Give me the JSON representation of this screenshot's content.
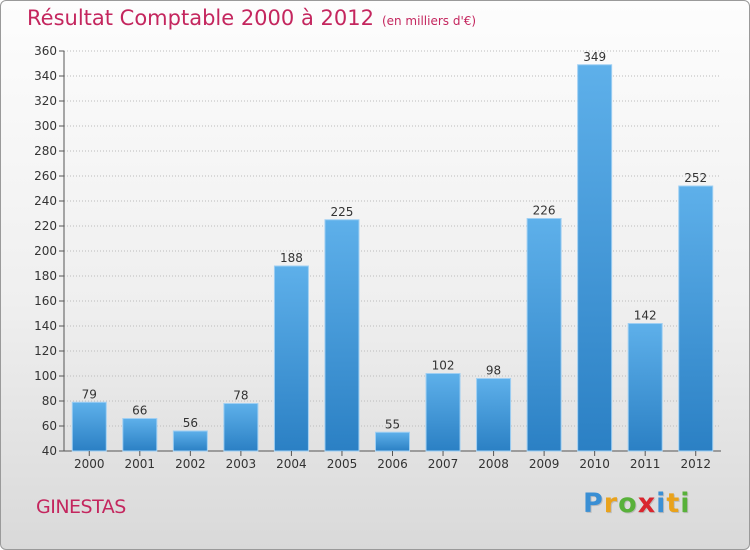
{
  "page": {
    "title": "Résultat Comptable 2000 à 2012",
    "subtitle": "(en milliers d'€)",
    "city": "GINESTAS",
    "logo": {
      "letters": [
        "P",
        "r",
        "o",
        "x",
        "i",
        "t",
        "i"
      ],
      "colors": [
        "#3a8fd4",
        "#e9a21b",
        "#58b13a",
        "#d9262f",
        "#3a8fd4",
        "#e9a21b",
        "#58b13a"
      ]
    }
  },
  "colors": {
    "title": "#c4265e",
    "bar_top": "#5eb0ea",
    "bar_bottom": "#2b80c4",
    "grid": "#bbbbbb",
    "text": "#333333"
  },
  "chart_data": {
    "type": "bar",
    "title": "Résultat Comptable 2000 à 2012",
    "xlabel": "",
    "ylabel": "",
    "categories": [
      "2000",
      "2001",
      "2002",
      "2003",
      "2004",
      "2005",
      "2006",
      "2007",
      "2008",
      "2009",
      "2010",
      "2011",
      "2012"
    ],
    "values": [
      79,
      66,
      56,
      78,
      188,
      225,
      55,
      102,
      98,
      226,
      349,
      142,
      252
    ],
    "ylim": [
      40,
      360
    ],
    "yticks": [
      40,
      60,
      80,
      100,
      120,
      140,
      160,
      180,
      200,
      220,
      240,
      260,
      280,
      300,
      320,
      340,
      360
    ],
    "grid": true
  }
}
